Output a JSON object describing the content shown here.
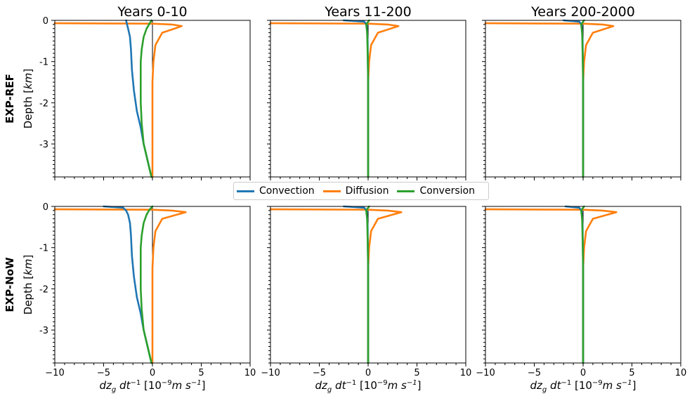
{
  "figure": {
    "row_labels": [
      {
        "bold": "EXP-REF",
        "sub": "Depth [km]"
      },
      {
        "bold": "EXP-NoW",
        "sub": "Depth [km]"
      }
    ],
    "col_titles": [
      "Years 0-10",
      "Years 11-200",
      "Years 200-2000"
    ],
    "xlabel": "dz_g dt^-1 [10^-9 m s^-1]",
    "legend": [
      "Convection",
      "Diffusion",
      "Conversion"
    ],
    "colors": {
      "Convection": "#1f77b4",
      "Diffusion": "#ff7f0e",
      "Conversion": "#2ca02c"
    }
  },
  "chart_data": [
    {
      "type": "line",
      "row": "EXP-REF",
      "title": "Years 0-10",
      "xlim": [
        -10,
        10
      ],
      "ylim": [
        -3.8,
        0
      ],
      "xticks": [
        "−10",
        "−5",
        "0",
        "5",
        "10"
      ],
      "yticks": [
        "0",
        "-1",
        "-2",
        "-3"
      ],
      "series": [
        {
          "name": "Convection",
          "x": [
            -2.7,
            -2.6,
            -2.5,
            -2.3,
            -2.2,
            -2.1,
            -1.9,
            -1.6,
            -1.2,
            -0.9,
            -0.6,
            -0.3,
            -0.1
          ],
          "y": [
            0,
            -0.1,
            -0.2,
            -0.4,
            -0.7,
            -1.2,
            -1.7,
            -2.2,
            -2.6,
            -3.0,
            -3.3,
            -3.6,
            -3.8
          ]
        },
        {
          "name": "Diffusion",
          "x": [
            -10,
            0,
            2.0,
            3.0,
            1.0,
            0.3,
            0.1,
            0,
            0
          ],
          "y": [
            -0.07,
            -0.08,
            -0.1,
            -0.14,
            -0.3,
            -0.6,
            -1.0,
            -1.5,
            -3.8
          ]
        },
        {
          "name": "Conversion",
          "x": [
            -0.1,
            -0.3,
            -0.6,
            -0.9,
            -1.1,
            -1.2,
            -1.2,
            -1.2,
            -1.1,
            -0.9,
            -0.6,
            -0.3,
            -0.1
          ],
          "y": [
            0,
            -0.08,
            -0.2,
            -0.4,
            -0.7,
            -1.0,
            -1.5,
            -2.0,
            -2.5,
            -3.0,
            -3.3,
            -3.6,
            -3.8
          ]
        }
      ]
    },
    {
      "type": "line",
      "row": "EXP-REF",
      "title": "Years 11-200",
      "xlim": [
        -10,
        10
      ],
      "ylim": [
        -3.8,
        0
      ],
      "xticks": [
        "−10",
        "−5",
        "0",
        "5",
        "10"
      ],
      "yticks": [
        "0",
        "-1",
        "-2",
        "-3"
      ],
      "series": [
        {
          "name": "Convection",
          "x": [
            -2.5,
            -0.4,
            -0.15,
            -0.05,
            0,
            0
          ],
          "y": [
            0,
            -0.03,
            -0.1,
            -0.5,
            -1.5,
            -3.8
          ]
        },
        {
          "name": "Diffusion",
          "x": [
            -10,
            0,
            2.0,
            3.1,
            1.0,
            0.3,
            0.1,
            0,
            0
          ],
          "y": [
            -0.07,
            -0.08,
            -0.1,
            -0.14,
            -0.3,
            -0.6,
            -1.0,
            -1.5,
            -3.8
          ]
        },
        {
          "name": "Conversion",
          "x": [
            0.1,
            -0.2,
            -0.1,
            -0.05,
            0,
            0
          ],
          "y": [
            0,
            -0.1,
            -0.3,
            -0.8,
            -1.5,
            -3.8
          ]
        }
      ]
    },
    {
      "type": "line",
      "row": "EXP-REF",
      "title": "Years 200-2000",
      "xlim": [
        -10,
        10
      ],
      "ylim": [
        -3.8,
        0
      ],
      "xticks": [
        "−10",
        "−5",
        "0",
        "5",
        "10"
      ],
      "yticks": [
        "0",
        "-1",
        "-2",
        "-3"
      ],
      "series": [
        {
          "name": "Convection",
          "x": [
            -2.0,
            -0.4,
            -0.15,
            -0.05,
            0,
            0
          ],
          "y": [
            0,
            -0.03,
            -0.1,
            -0.5,
            -1.5,
            -3.8
          ]
        },
        {
          "name": "Diffusion",
          "x": [
            -10,
            0,
            2.0,
            3.1,
            1.0,
            0.3,
            0.1,
            0,
            0
          ],
          "y": [
            -0.07,
            -0.08,
            -0.1,
            -0.14,
            -0.3,
            -0.6,
            -1.0,
            -1.5,
            -3.8
          ]
        },
        {
          "name": "Conversion",
          "x": [
            0.1,
            -0.2,
            -0.1,
            -0.05,
            0,
            0
          ],
          "y": [
            0,
            -0.1,
            -0.3,
            -0.8,
            -1.5,
            -3.8
          ]
        }
      ]
    },
    {
      "type": "line",
      "row": "EXP-NoW",
      "title": "",
      "xlim": [
        -10,
        10
      ],
      "ylim": [
        -3.8,
        0
      ],
      "xticks": [
        "−10",
        "−5",
        "0",
        "5",
        "10"
      ],
      "yticks": [
        "0",
        "-1",
        "-2",
        "-3"
      ],
      "series": [
        {
          "name": "Convection",
          "x": [
            -5.0,
            -3.0,
            -2.7,
            -2.5,
            -2.3,
            -2.2,
            -2.1,
            -1.9,
            -1.6,
            -1.2,
            -0.9,
            -0.6,
            -0.3,
            -0.1
          ],
          "y": [
            0,
            -0.03,
            -0.1,
            -0.2,
            -0.4,
            -0.7,
            -1.2,
            -1.7,
            -2.2,
            -2.6,
            -3.0,
            -3.3,
            -3.6,
            -3.8
          ]
        },
        {
          "name": "Diffusion",
          "x": [
            -10,
            0,
            2.0,
            3.4,
            1.0,
            0.3,
            0.1,
            0,
            0
          ],
          "y": [
            -0.07,
            -0.08,
            -0.1,
            -0.14,
            -0.3,
            -0.6,
            -1.0,
            -1.5,
            -3.8
          ]
        },
        {
          "name": "Conversion",
          "x": [
            0,
            -0.3,
            -0.6,
            -0.9,
            -1.1,
            -1.2,
            -1.2,
            -1.2,
            -1.1,
            -0.9,
            -0.6,
            -0.3,
            -0.1
          ],
          "y": [
            0,
            -0.08,
            -0.2,
            -0.4,
            -0.7,
            -1.0,
            -1.5,
            -2.0,
            -2.5,
            -3.0,
            -3.3,
            -3.6,
            -3.8
          ]
        }
      ]
    },
    {
      "type": "line",
      "row": "EXP-NoW",
      "title": "",
      "xlim": [
        -10,
        10
      ],
      "ylim": [
        -3.8,
        0
      ],
      "xticks": [
        "−10",
        "−5",
        "0",
        "5",
        "10"
      ],
      "yticks": [
        "0",
        "-1",
        "-2",
        "-3"
      ],
      "series": [
        {
          "name": "Convection",
          "x": [
            -2.5,
            -0.4,
            -0.15,
            -0.05,
            0,
            0
          ],
          "y": [
            0,
            -0.03,
            -0.1,
            -0.5,
            -1.5,
            -3.8
          ]
        },
        {
          "name": "Diffusion",
          "x": [
            -10,
            0,
            2.0,
            3.4,
            1.0,
            0.3,
            0.1,
            0,
            0
          ],
          "y": [
            -0.07,
            -0.08,
            -0.1,
            -0.14,
            -0.3,
            -0.6,
            -1.0,
            -1.5,
            -3.8
          ]
        },
        {
          "name": "Conversion",
          "x": [
            0.1,
            -0.2,
            -0.1,
            -0.05,
            0,
            0
          ],
          "y": [
            0,
            -0.1,
            -0.3,
            -0.8,
            -1.5,
            -3.8
          ]
        }
      ]
    },
    {
      "type": "line",
      "row": "EXP-NoW",
      "title": "",
      "xlim": [
        -10,
        10
      ],
      "ylim": [
        -3.8,
        0
      ],
      "xticks": [
        "−10",
        "−5",
        "0",
        "5",
        "10"
      ],
      "yticks": [
        "0",
        "-1",
        "-2",
        "-3"
      ],
      "series": [
        {
          "name": "Convection",
          "x": [
            -1.8,
            -0.4,
            -0.15,
            -0.05,
            0,
            0
          ],
          "y": [
            0,
            -0.03,
            -0.1,
            -0.5,
            -1.5,
            -3.8
          ]
        },
        {
          "name": "Diffusion",
          "x": [
            -10,
            0,
            2.0,
            3.4,
            1.0,
            0.3,
            0.1,
            0,
            0
          ],
          "y": [
            -0.07,
            -0.08,
            -0.1,
            -0.14,
            -0.3,
            -0.6,
            -1.0,
            -1.5,
            -3.8
          ]
        },
        {
          "name": "Conversion",
          "x": [
            0.1,
            -0.2,
            -0.1,
            -0.05,
            0,
            0
          ],
          "y": [
            0,
            -0.1,
            -0.3,
            -0.8,
            -1.5,
            -3.8
          ]
        }
      ]
    }
  ]
}
